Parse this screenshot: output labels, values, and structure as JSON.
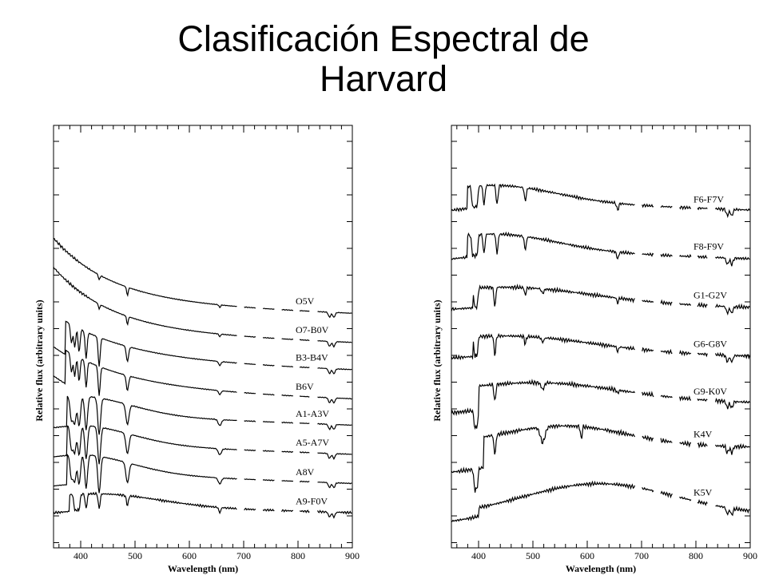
{
  "title": {
    "line1": "Clasificación Espectral de",
    "line2": "Harvard"
  },
  "colors": {
    "line": "#000000",
    "background": "#ffffff"
  },
  "chart_data": [
    {
      "type": "line",
      "title": "",
      "xlabel": "Wavelength (nm)",
      "ylabel": "Relative flux (arbitrary units)",
      "xlim": [
        350,
        900
      ],
      "xticks": [
        400,
        500,
        600,
        700,
        800,
        900
      ],
      "grid": false,
      "series": [
        {
          "name": "O5V",
          "profile": "hot",
          "offset": 0
        },
        {
          "name": "O7-B0V",
          "profile": "hot",
          "offset": 1
        },
        {
          "name": "B3-B4V",
          "profile": "B",
          "offset": 2
        },
        {
          "name": "B6V",
          "profile": "B",
          "offset": 3
        },
        {
          "name": "A1-A3V",
          "profile": "A",
          "offset": 4
        },
        {
          "name": "A5-A7V",
          "profile": "A",
          "offset": 5
        },
        {
          "name": "A8V",
          "profile": "A",
          "offset": 6
        },
        {
          "name": "A9-F0V",
          "profile": "F",
          "offset": 7
        }
      ]
    },
    {
      "type": "line",
      "title": "",
      "xlabel": "Wavelength (nm)",
      "ylabel": "Relative flux (arbitrary units)",
      "xlim": [
        350,
        900
      ],
      "xticks": [
        400,
        500,
        600,
        700,
        800,
        900
      ],
      "grid": false,
      "series": [
        {
          "name": "F6-F7V",
          "profile": "F",
          "offset": 0
        },
        {
          "name": "F8-F9V",
          "profile": "F",
          "offset": 1
        },
        {
          "name": "G1-G2V",
          "profile": "G",
          "offset": 2
        },
        {
          "name": "G6-G8V",
          "profile": "G",
          "offset": 3
        },
        {
          "name": "G9-K0V",
          "profile": "K",
          "offset": 4
        },
        {
          "name": "K4V",
          "profile": "K4",
          "offset": 5
        },
        {
          "name": "K5V",
          "profile": "K5",
          "offset": 6
        }
      ]
    }
  ]
}
